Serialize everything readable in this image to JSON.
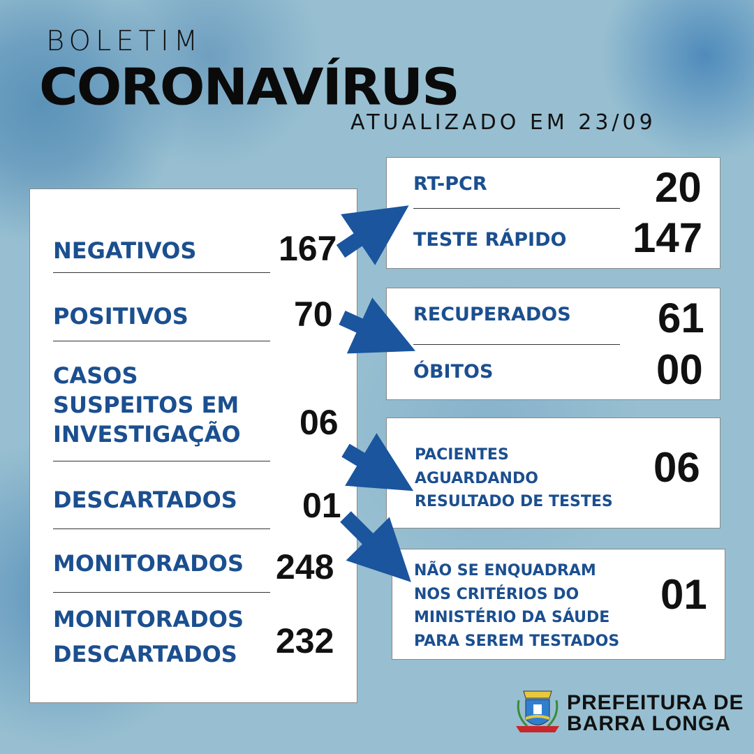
{
  "header": {
    "title_top": "BOLETIM",
    "title_main": "CORONAVÍRUS",
    "updated": "ATUALIZADO EM 23/09"
  },
  "left": [
    {
      "label": "NEGATIVOS",
      "value": "167"
    },
    {
      "label": "POSITIVOS",
      "value": "70"
    },
    {
      "label_lines": [
        "CASOS",
        "SUSPEITOS EM",
        "INVESTIGAÇÃO"
      ],
      "value": "06"
    },
    {
      "label": "DESCARTADOS",
      "value": "01"
    },
    {
      "label": "MONITORADOS",
      "value": "248"
    },
    {
      "label_lines": [
        "MONITORADOS",
        "DESCARTADOS"
      ],
      "value": "232"
    }
  ],
  "tests": {
    "rtpcr_label": "RT-PCR",
    "rtpcr_value": "20",
    "rapid_label": "TESTE RÁPIDO",
    "rapid_value": "147"
  },
  "outcomes": {
    "recovered_label": "RECUPERADOS",
    "recovered_value": "61",
    "deaths_label": "ÓBITOS",
    "deaths_value": "00"
  },
  "awaiting": {
    "lines": [
      "PACIENTES",
      "AGUARDANDO",
      "RESULTADO DE TESTES"
    ],
    "value": "06"
  },
  "not_eligible": {
    "lines": [
      "NÃO SE ENQUADRAM",
      "NOS CRITÉRIOS DO",
      "MINISTÉRIO DA SÁUDE",
      "PARA SEREM TESTADOS"
    ],
    "value": "01"
  },
  "footer": {
    "line1": "PREFEITURA DE",
    "line2": "BARRA LONGA",
    "logo_text": "BARRA LONGA"
  },
  "colors": {
    "accent": "#1b4f8f",
    "arrow": "#1a559e",
    "background": "#97bfd1"
  }
}
